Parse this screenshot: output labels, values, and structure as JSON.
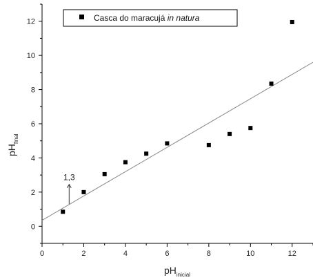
{
  "chart_data": {
    "type": "scatter",
    "xlabel": "pH",
    "xlabel_sub": "inicial",
    "ylabel": "pH",
    "ylabel_sub": "final",
    "xlim": [
      0,
      13
    ],
    "ylim": [
      -1,
      13
    ],
    "x_ticks": [
      0,
      2,
      4,
      6,
      8,
      10,
      12
    ],
    "y_ticks": [
      0,
      2,
      4,
      6,
      8,
      10,
      12
    ],
    "grid": false,
    "legend_position": "top-center",
    "series": [
      {
        "name_prefix": "Casca do maracujá ",
        "name_italic": "in natura",
        "marker": "square",
        "color": "#000000",
        "points": [
          {
            "x": 1.0,
            "y": 0.85
          },
          {
            "x": 2.0,
            "y": 2.0
          },
          {
            "x": 3.0,
            "y": 3.05
          },
          {
            "x": 4.0,
            "y": 3.75
          },
          {
            "x": 5.0,
            "y": 4.25
          },
          {
            "x": 6.0,
            "y": 4.85
          },
          {
            "x": 8.0,
            "y": 4.75
          },
          {
            "x": 9.0,
            "y": 5.4
          },
          {
            "x": 10.0,
            "y": 5.75
          },
          {
            "x": 11.0,
            "y": 8.35
          },
          {
            "x": 12.0,
            "y": 11.95
          }
        ]
      }
    ],
    "fit_line": {
      "x_start": 0,
      "y_start": 0.35,
      "x_end": 13,
      "y_end": 9.6,
      "color": "#888888"
    },
    "annotation": {
      "text": "1,3",
      "x": 1.3,
      "y_from": 1.3,
      "y_to": 2.45
    }
  }
}
